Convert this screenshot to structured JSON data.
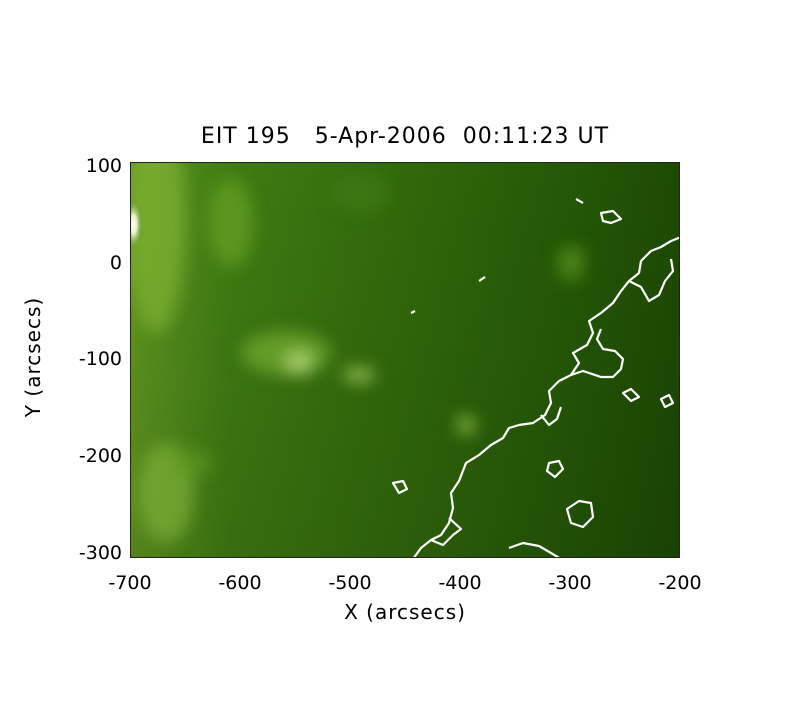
{
  "title": "EIT 195   5-Apr-2006  00:11:23 UT",
  "xlabel": "X (arcsecs)",
  "ylabel": "Y (arcsecs)",
  "x_ticks": [
    "-700",
    "-600",
    "-500",
    "-400",
    "-300",
    "-200"
  ],
  "y_ticks": [
    "100",
    "0",
    "-100",
    "-200",
    "-300"
  ],
  "x_range": [
    -700,
    -200
  ],
  "y_range": [
    -300,
    100
  ],
  "colors": {
    "background": "#ffffff",
    "map_dark": "#1f4d04",
    "map_mid": "#3d7a10",
    "map_bright": "#c7e38a",
    "contour": "#ffffff"
  }
}
